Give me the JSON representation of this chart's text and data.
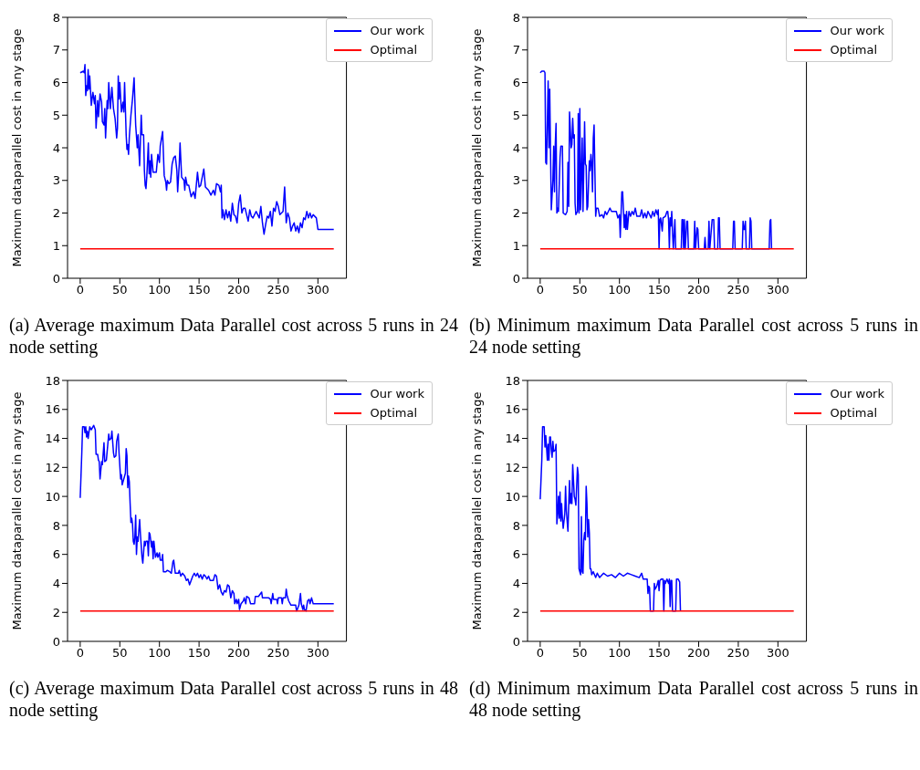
{
  "chart_data": [
    {
      "type": "line",
      "title": "(a) Average maximum Data Parallel cost across 5 runs in 24 node setting",
      "ylabel": "Maximum dataparallel cost in any stage",
      "xlim": [
        -16,
        336
      ],
      "xticks": [
        0,
        50,
        100,
        150,
        200,
        250,
        300
      ],
      "ylim": [
        0,
        8
      ],
      "yticks": [
        0,
        1,
        2,
        3,
        4,
        5,
        6,
        7,
        8
      ],
      "legend": "top right",
      "series": [
        {
          "name": "Our work",
          "color": "#0000ff",
          "x": [
            0,
            4,
            5,
            6,
            7,
            8,
            9,
            10,
            11,
            12,
            14,
            16,
            18,
            19,
            20,
            22,
            23,
            25,
            27,
            28,
            30,
            31,
            32,
            34,
            35,
            36,
            38,
            40,
            42,
            44,
            46,
            47,
            48,
            49,
            50,
            52,
            54,
            55,
            56,
            58,
            59,
            60,
            61,
            62,
            64,
            66,
            68,
            70,
            72,
            73,
            75,
            77,
            78,
            80,
            81,
            82,
            83,
            84,
            86,
            87,
            88,
            89,
            90,
            92,
            96,
            98,
            100,
            101,
            104,
            106,
            108,
            109,
            110,
            112,
            114,
            116,
            118,
            120,
            122,
            123,
            125,
            126,
            128,
            131,
            132,
            133,
            135,
            137,
            140,
            143,
            145,
            148,
            150,
            152,
            154,
            156,
            158,
            162,
            165,
            168,
            170,
            172,
            175,
            177,
            178,
            179,
            180,
            182,
            184,
            186,
            188,
            190,
            192,
            194,
            196,
            198,
            200,
            202,
            204,
            206,
            208,
            212,
            214,
            216,
            218,
            222,
            226,
            228,
            230,
            232,
            234,
            236,
            238,
            240,
            242,
            244,
            246,
            248,
            250,
            252,
            256,
            258,
            260,
            262,
            264,
            266,
            268,
            270,
            272,
            274,
            276,
            278,
            280,
            282,
            284,
            286,
            288,
            290,
            292,
            294,
            298,
            300,
            320
          ],
          "values": [
            6.3,
            6.35,
            6.3,
            6.55,
            5.6,
            5.9,
            5.75,
            6.4,
            5.8,
            6.2,
            5.3,
            5.7,
            5.35,
            5.6,
            4.6,
            5.45,
            4.95,
            5.65,
            5.4,
            4.8,
            4.7,
            5.2,
            4.3,
            5.45,
            5.2,
            6.0,
            5.2,
            5.85,
            5.2,
            4.9,
            4.3,
            4.6,
            6.2,
            5.5,
            6.0,
            5.1,
            5.4,
            5.1,
            6.0,
            4.4,
            3.95,
            4.1,
            3.8,
            4.35,
            5.0,
            5.5,
            6.15,
            4.7,
            4.0,
            4.4,
            3.45,
            5.0,
            4.4,
            4.4,
            3.3,
            2.85,
            2.75,
            3.1,
            4.15,
            3.2,
            3.6,
            3.1,
            3.8,
            3.25,
            3.25,
            3.8,
            3.55,
            4.05,
            4.5,
            3.15,
            2.95,
            2.7,
            3.0,
            2.9,
            2.95,
            3.5,
            3.7,
            3.75,
            3.3,
            2.65,
            3.5,
            4.15,
            3.1,
            3.0,
            2.7,
            3.1,
            2.85,
            2.85,
            2.5,
            2.65,
            2.45,
            3.25,
            2.8,
            2.85,
            3.1,
            3.35,
            2.8,
            2.7,
            2.55,
            2.7,
            2.55,
            2.9,
            2.85,
            2.65,
            2.85,
            1.85,
            2.1,
            1.8,
            2.1,
            1.85,
            2.05,
            1.75,
            2.3,
            1.95,
            1.9,
            1.7,
            2.3,
            2.55,
            2.0,
            2.15,
            2.15,
            1.75,
            2.1,
            1.9,
            1.85,
            2.05,
            1.85,
            2.2,
            1.7,
            1.35,
            1.65,
            1.9,
            1.85,
            2.05,
            1.6,
            2.15,
            2.05,
            2.35,
            2.2,
            1.95,
            2.05,
            2.8,
            1.7,
            2.0,
            1.85,
            1.45,
            1.6,
            1.7,
            1.45,
            1.6,
            1.4,
            1.7,
            1.55,
            1.85,
            1.8,
            2.05,
            1.85,
            2.0,
            1.85,
            1.95,
            1.85,
            1.5,
            1.5
          ]
        },
        {
          "name": "Optimal",
          "color": "#ff0000",
          "x": [
            0,
            320
          ],
          "values": [
            0.9,
            0.9
          ]
        }
      ]
    },
    {
      "type": "line",
      "title": "(b) Minimum maximum Data Parallel cost across 5 runs in 24 node setting",
      "ylabel": "Maximum dataparallel cost in any stage",
      "xlim": [
        -16,
        336
      ],
      "xticks": [
        0,
        50,
        100,
        150,
        200,
        250,
        300
      ],
      "ylim": [
        0,
        8
      ],
      "yticks": [
        0,
        1,
        2,
        3,
        4,
        5,
        6,
        7,
        8
      ],
      "legend": "top right",
      "series": [
        {
          "name": "Our work",
          "color": "#0000ff",
          "x": [
            0,
            2,
            5,
            6,
            7,
            8,
            10,
            11,
            12,
            13,
            14,
            16,
            17,
            18,
            19,
            20,
            21,
            22,
            23,
            25,
            26,
            28,
            29,
            32,
            34,
            35,
            36,
            37,
            39,
            40,
            41,
            42,
            43,
            44,
            45,
            47,
            48,
            49,
            50,
            51,
            53,
            54,
            56,
            57,
            58,
            59,
            60,
            62,
            63,
            64,
            65,
            66,
            67,
            68,
            70,
            71,
            73,
            75,
            78,
            80,
            82,
            84,
            86,
            88,
            90,
            96,
            98,
            100,
            101,
            103,
            104,
            106,
            107,
            108,
            109,
            110,
            112,
            114,
            116,
            118,
            120,
            122,
            126,
            128,
            130,
            132,
            134,
            136,
            140,
            142,
            144,
            146,
            148,
            149,
            150,
            151,
            152,
            154,
            155,
            158,
            160,
            161,
            162,
            163,
            164,
            165,
            166,
            167,
            168,
            170,
            171,
            178,
            179,
            180,
            181,
            182,
            183,
            185,
            186,
            187,
            194,
            195,
            196,
            198,
            199,
            200,
            207,
            208,
            209,
            212,
            213,
            214,
            217,
            219,
            220,
            224,
            225,
            226,
            227,
            243,
            244,
            245,
            246,
            255,
            256,
            257,
            258,
            259,
            260,
            264,
            265,
            266,
            267,
            289,
            290,
            291,
            292
          ],
          "values": [
            6.3,
            6.35,
            6.35,
            6.3,
            3.55,
            3.5,
            6.05,
            4.0,
            5.8,
            3.9,
            2.1,
            3.0,
            4.05,
            2.65,
            4.1,
            4.75,
            2.0,
            2.15,
            2.05,
            3.7,
            4.05,
            4.05,
            2.0,
            1.95,
            2.05,
            3.55,
            2.2,
            5.1,
            4.0,
            4.1,
            4.9,
            4.3,
            4.4,
            2.3,
            1.95,
            2.05,
            5.05,
            2.0,
            5.2,
            2.1,
            4.3,
            2.05,
            4.8,
            3.5,
            3.45,
            2.1,
            2.2,
            3.6,
            3.3,
            3.8,
            3.5,
            2.65,
            4.3,
            4.7,
            1.9,
            2.15,
            2.15,
            1.9,
            1.95,
            1.85,
            2.05,
            1.95,
            2.05,
            2.15,
            2.05,
            2.05,
            1.85,
            1.95,
            1.25,
            2.65,
            2.65,
            1.55,
            1.95,
            1.5,
            2.05,
            1.5,
            2.05,
            1.9,
            2.05,
            1.95,
            2.15,
            1.9,
            1.9,
            2.1,
            1.85,
            2.0,
            1.85,
            2.05,
            1.85,
            2.05,
            1.9,
            2.1,
            1.95,
            2.1,
            0.9,
            1.8,
            1.85,
            1.45,
            1.85,
            1.9,
            2.05,
            2.05,
            1.8,
            0.9,
            1.85,
            1.6,
            2.05,
            1.4,
            0.9,
            1.8,
            0.9,
            0.9,
            1.8,
            1.8,
            0.9,
            1.8,
            0.9,
            1.75,
            1.75,
            0.9,
            0.9,
            1.75,
            0.9,
            1.55,
            1.5,
            0.9,
            0.9,
            1.25,
            0.9,
            0.9,
            1.75,
            0.9,
            1.8,
            1.8,
            0.9,
            0.9,
            1.85,
            1.85,
            0.9,
            0.9,
            1.75,
            1.75,
            0.9,
            0.9,
            1.75,
            1.5,
            1.5,
            1.75,
            0.9,
            0.9,
            1.85,
            1.75,
            0.9,
            0.9,
            1.75,
            1.8,
            0.9
          ]
        },
        {
          "name": "Optimal",
          "color": "#ff0000",
          "x": [
            0,
            320
          ],
          "values": [
            0.9,
            0.9
          ]
        }
      ]
    },
    {
      "type": "line",
      "title": "(c) Average maximum Data Parallel cost across 5 runs in 48 node setting",
      "ylabel": "Maximum dataparallel cost in any stage",
      "xlim": [
        -16,
        336
      ],
      "xticks": [
        0,
        50,
        100,
        150,
        200,
        250,
        300
      ],
      "ylim": [
        0,
        18
      ],
      "yticks": [
        0,
        2,
        4,
        6,
        8,
        10,
        12,
        14,
        16,
        18
      ],
      "legend": "top right",
      "series": [
        {
          "name": "Our work",
          "color": "#0000ff",
          "x": [
            0,
            2,
            3,
            5,
            6,
            7,
            8,
            9,
            10,
            12,
            14,
            16,
            17,
            19,
            20,
            22,
            23,
            24,
            25,
            27,
            28,
            30,
            31,
            33,
            36,
            37,
            39,
            40,
            42,
            43,
            45,
            46,
            48,
            49,
            51,
            52,
            53,
            55,
            57,
            58,
            59,
            60,
            61,
            62,
            63,
            64,
            65,
            66,
            67,
            68,
            69,
            70,
            71,
            72,
            73,
            75,
            76,
            78,
            79,
            81,
            82,
            83,
            85,
            86,
            87,
            88,
            90,
            91,
            92,
            93,
            95,
            97,
            98,
            100,
            101,
            103,
            104,
            105,
            108,
            110,
            113,
            115,
            117,
            118,
            120,
            124,
            125,
            127,
            129,
            132,
            134,
            136,
            138,
            140,
            142,
            144,
            146,
            148,
            150,
            152,
            154,
            156,
            158,
            160,
            162,
            164,
            168,
            170,
            172,
            174,
            176,
            178,
            180,
            182,
            184,
            186,
            188,
            190,
            192,
            194,
            195,
            197,
            198,
            200,
            201,
            203,
            206,
            207,
            209,
            210,
            213,
            215,
            220,
            221,
            225,
            229,
            230,
            234,
            238,
            240,
            241,
            243,
            244,
            248,
            249,
            250,
            254,
            255,
            256,
            259,
            260,
            261,
            263,
            266,
            272,
            273,
            274,
            276,
            278,
            279,
            281,
            282,
            283,
            285,
            287,
            289,
            290,
            292,
            294,
            320
          ],
          "values": [
            9.9,
            13.0,
            14.8,
            14.8,
            14.4,
            14.8,
            14.1,
            14.5,
            14.0,
            14.8,
            14.6,
            14.8,
            14.9,
            14.6,
            12.9,
            12.9,
            12.5,
            12.4,
            11.2,
            12.4,
            12.2,
            13.7,
            12.4,
            12.5,
            14.3,
            13.9,
            14.0,
            14.5,
            13.0,
            12.7,
            12.8,
            13.8,
            14.3,
            13.0,
            11.2,
            11.5,
            10.8,
            11.2,
            11.6,
            13.3,
            12.8,
            10.6,
            11.4,
            11.0,
            9.5,
            8.2,
            8.5,
            8.1,
            6.9,
            6.7,
            7.2,
            8.7,
            6.0,
            7.2,
            6.9,
            8.4,
            7.4,
            5.8,
            5.4,
            6.9,
            6.6,
            6.9,
            6.9,
            5.9,
            7.5,
            7.4,
            6.5,
            6.9,
            5.7,
            6.9,
            5.8,
            6.1,
            5.8,
            6.1,
            5.6,
            5.6,
            6.0,
            4.8,
            4.8,
            4.9,
            4.8,
            4.7,
            5.5,
            5.6,
            4.7,
            4.7,
            4.9,
            4.5,
            4.7,
            4.5,
            4.2,
            4.3,
            3.9,
            4.2,
            4.5,
            4.7,
            4.5,
            4.7,
            4.4,
            4.6,
            4.3,
            4.6,
            4.5,
            4.3,
            4.5,
            4.2,
            4.2,
            4.6,
            4.5,
            3.6,
            3.9,
            3.4,
            3.2,
            3.5,
            3.4,
            3.9,
            3.8,
            3.0,
            3.5,
            3.3,
            2.6,
            2.9,
            2.6,
            2.9,
            2.2,
            2.6,
            2.8,
            3.0,
            2.6,
            3.1,
            3.0,
            2.6,
            2.6,
            3.1,
            3.1,
            3.4,
            3.0,
            3.0,
            3.0,
            2.9,
            2.6,
            3.3,
            2.9,
            2.9,
            2.6,
            3.0,
            3.0,
            2.6,
            3.0,
            3.0,
            3.6,
            3.2,
            2.8,
            2.5,
            2.5,
            2.1,
            2.2,
            2.5,
            3.3,
            2.6,
            2.2,
            2.5,
            2.2,
            2.1,
            2.8,
            2.9,
            2.6,
            3.0,
            2.6,
            2.6
          ]
        },
        {
          "name": "Optimal",
          "color": "#ff0000",
          "x": [
            0,
            320
          ],
          "values": [
            2.1,
            2.1
          ]
        }
      ]
    },
    {
      "type": "line",
      "title": "(d) Minimum maximum Data Parallel cost across 5 runs in 48 node setting",
      "ylabel": "Maximum dataparallel cost in any stage",
      "xlim": [
        -16,
        336
      ],
      "xticks": [
        0,
        50,
        100,
        150,
        200,
        250,
        300
      ],
      "ylim": [
        0,
        18
      ],
      "yticks": [
        0,
        2,
        4,
        6,
        8,
        10,
        12,
        14,
        16,
        18
      ],
      "legend": "top right",
      "series": [
        {
          "name": "Our work",
          "color": "#0000ff",
          "x": [
            0,
            2,
            3,
            5,
            6,
            7,
            8,
            9,
            10,
            11,
            12,
            13,
            14,
            15,
            16,
            17,
            19,
            20,
            21,
            22,
            23,
            24,
            25,
            26,
            27,
            28,
            29,
            31,
            32,
            33,
            35,
            36,
            37,
            38,
            39,
            40,
            41,
            43,
            44,
            45,
            47,
            48,
            49,
            50,
            51,
            52,
            53,
            54,
            55,
            56,
            57,
            58,
            59,
            60,
            61,
            62,
            63,
            64,
            65,
            67,
            70,
            72,
            75,
            80,
            85,
            90,
            95,
            100,
            105,
            110,
            115,
            120,
            125,
            128,
            130,
            135,
            136,
            137,
            138,
            139,
            143,
            144,
            145,
            147,
            149,
            150,
            151,
            153,
            155,
            156,
            157,
            158,
            160,
            162,
            163,
            164,
            165,
            166,
            167,
            171,
            172,
            174,
            176,
            177
          ],
          "values": [
            9.8,
            12.5,
            14.8,
            14.8,
            13.4,
            14.2,
            13.4,
            12.5,
            13.6,
            12.5,
            14.1,
            14.1,
            13.2,
            12.7,
            13.8,
            13.1,
            13.2,
            13.6,
            8.1,
            8.8,
            10.0,
            8.5,
            10.3,
            8.3,
            9.5,
            8.5,
            7.8,
            8.8,
            10.7,
            9.0,
            7.6,
            9.5,
            11.1,
            9.5,
            10.2,
            9.5,
            12.2,
            10.0,
            9.8,
            9.4,
            12.0,
            11.5,
            5.0,
            4.8,
            4.6,
            8.6,
            4.8,
            4.7,
            7.0,
            7.5,
            7.0,
            10.7,
            9.5,
            7.2,
            8.4,
            7.5,
            5.0,
            5.0,
            4.6,
            4.8,
            4.4,
            4.7,
            4.4,
            4.7,
            4.5,
            4.6,
            4.4,
            4.7,
            4.5,
            4.7,
            4.6,
            4.5,
            4.4,
            4.7,
            4.3,
            4.3,
            3.3,
            3.8,
            3.7,
            2.1,
            2.1,
            4.0,
            3.6,
            3.8,
            4.2,
            3.5,
            4.2,
            4.3,
            4.3,
            2.1,
            4.2,
            4.0,
            4.3,
            4.0,
            4.3,
            2.4,
            4.2,
            4.2,
            2.1,
            2.1,
            4.3,
            4.3,
            4.1,
            2.1
          ]
        },
        {
          "name": "Optimal",
          "color": "#ff0000",
          "x": [
            0,
            320
          ],
          "values": [
            2.1,
            2.1
          ]
        }
      ]
    }
  ]
}
